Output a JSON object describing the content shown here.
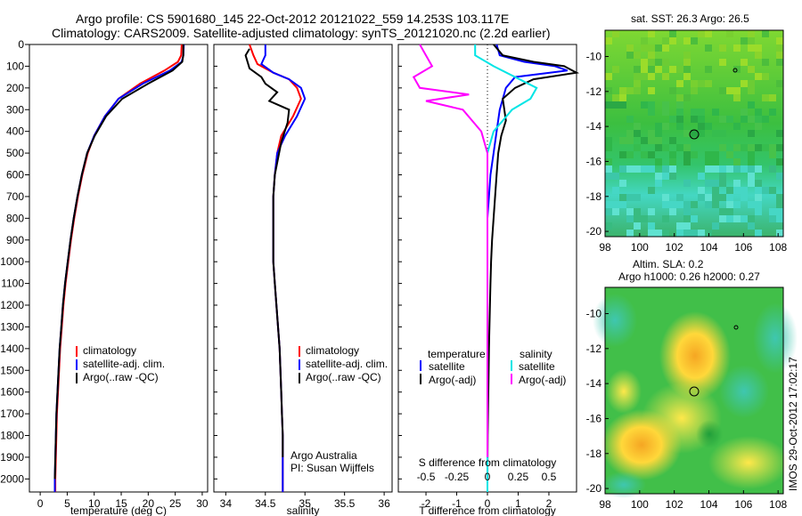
{
  "header": {
    "line1": "Argo profile: CS 5901680_145 22-Oct-2012 20121022_559 14.253S 103.117E",
    "line2": "Climatology: CARS2009. Satellite-adjusted climatology: synTS_20121020.nc (2.2d earlier)"
  },
  "colors": {
    "climatology": "#ff0000",
    "satellite": "#0000ff",
    "argo": "#000000",
    "cyan": "#00e5e5",
    "magenta": "#ff00ff"
  },
  "depth_axis": {
    "ticks": [
      0,
      100,
      200,
      300,
      400,
      500,
      600,
      700,
      800,
      900,
      1000,
      1100,
      1200,
      1300,
      1400,
      1500,
      1600,
      1700,
      1800,
      1900,
      2000
    ],
    "range": [
      0,
      2060
    ]
  },
  "temp_panel": {
    "xlabel": "temperature (deg C)",
    "xticks": [
      0,
      5,
      10,
      15,
      20,
      25,
      30
    ],
    "xlim": [
      -2,
      31
    ],
    "legend": [
      "climatology",
      "satellite-adj. clim.",
      "Argo(..raw -QC)"
    ]
  },
  "sal_panel": {
    "xlabel": "salinity",
    "xticks": [
      "34",
      "34.5",
      "35",
      "35.5",
      "36"
    ],
    "xlim": [
      33.85,
      36.1
    ],
    "legend": [
      "climatology",
      "satellite-adj. clim.",
      "Argo(..raw -QC)"
    ],
    "credit1": "Argo Australia",
    "credit2": "PI: Susan Wijffels"
  },
  "diff_panel": {
    "xlabel": "T difference from climatology",
    "top_label": "S difference from climatology",
    "xticks": [
      "-2",
      "-1",
      "0",
      "1",
      "2"
    ],
    "top_ticks": [
      "-0.5",
      "-0.25",
      "0",
      "0.25",
      "0.5"
    ],
    "xlim": [
      -2.9,
      2.9
    ],
    "legend_temp_title": "temperature",
    "legend_sal_title": "salinity",
    "legend_sat": "satellite",
    "legend_argo": "Argo(-adj)"
  },
  "maps": {
    "sst_title": "sat. SST: 26.3 Argo: 26.5",
    "sla_title1": "Altim. SLA: 0.2",
    "sla_title2": "Argo h1000: 0.26 h2000: 0.27",
    "xticks": [
      "98",
      "100",
      "102",
      "104",
      "106",
      "108"
    ],
    "sst_yticks": [
      "-10",
      "-12",
      "-14",
      "-16",
      "-18",
      "-20"
    ],
    "sla_yticks": [
      "-10",
      "-12",
      "-14",
      "-16",
      "-18",
      "-20"
    ],
    "watermark": "IMOS 29-Oct-2012 17:02:17"
  },
  "chart_data": [
    {
      "type": "line",
      "title": "",
      "xlabel": "temperature (deg C)",
      "ylabel": "",
      "xlim": [
        -2,
        31
      ],
      "ylim": [
        2060,
        0
      ],
      "series": [
        {
          "name": "climatology",
          "x": [
            26.2,
            26.1,
            25.5,
            23,
            18.5,
            14.5,
            12,
            10,
            8.8,
            7.8,
            7,
            6.3,
            5.7,
            5.2,
            4.7,
            4.3,
            4,
            3.7,
            3.5,
            3.3,
            3.1,
            3,
            2.9,
            2.8,
            2.8
          ],
          "y": [
            0,
            50,
            80,
            120,
            180,
            250,
            330,
            420,
            500,
            600,
            700,
            800,
            900,
            1000,
            1100,
            1200,
            1300,
            1400,
            1500,
            1600,
            1700,
            1800,
            1900,
            2000,
            2060
          ]
        },
        {
          "name": "satellite-adj. clim.",
          "x": [
            26.6,
            26.5,
            26.2,
            24,
            19,
            14.5,
            12,
            10,
            8.7,
            7.7,
            6.9,
            6.2,
            5.6,
            5.1,
            4.6,
            4.2,
            3.9,
            3.6,
            3.4,
            3.2,
            3,
            2.9,
            2.8,
            2.7,
            2.7
          ],
          "y": [
            0,
            50,
            80,
            120,
            180,
            250,
            330,
            420,
            500,
            600,
            700,
            800,
            900,
            1000,
            1100,
            1200,
            1300,
            1400,
            1500,
            1600,
            1700,
            1800,
            1900,
            2000,
            2060
          ]
        },
        {
          "name": "Argo(..raw -QC)",
          "x": [
            26.5,
            26.5,
            26.3,
            24.5,
            20,
            15.2,
            12.2,
            10.1,
            8.7,
            7.7,
            6.9,
            6.2,
            5.6,
            5.1,
            4.6,
            4.2,
            3.9,
            3.6,
            3.4,
            3.2,
            3,
            2.9,
            2.8,
            2.7
          ],
          "y": [
            0,
            50,
            80,
            120,
            180,
            250,
            330,
            420,
            500,
            600,
            700,
            800,
            900,
            1000,
            1100,
            1200,
            1300,
            1400,
            1500,
            1600,
            1700,
            1800,
            1900,
            2000
          ]
        }
      ]
    },
    {
      "type": "line",
      "title": "",
      "xlabel": "salinity",
      "ylabel": "",
      "xlim": [
        33.85,
        36.1
      ],
      "ylim": [
        2060,
        0
      ],
      "series": [
        {
          "name": "climatology",
          "x": [
            34.3,
            34.35,
            34.4,
            34.6,
            34.8,
            34.9,
            34.95,
            34.85,
            34.7,
            34.65,
            34.62,
            34.6,
            34.6,
            34.6,
            34.6,
            34.62,
            34.64,
            34.66,
            34.68,
            34.69,
            34.7,
            34.71,
            34.72,
            34.72,
            34.72
          ],
          "y": [
            0,
            50,
            90,
            130,
            160,
            200,
            250,
            330,
            420,
            500,
            600,
            700,
            800,
            900,
            1000,
            1100,
            1200,
            1300,
            1400,
            1500,
            1600,
            1700,
            1800,
            1900,
            2060
          ]
        },
        {
          "name": "satellite-adj. clim.",
          "x": [
            34.5,
            34.5,
            34.45,
            34.6,
            34.8,
            34.95,
            35,
            34.9,
            34.75,
            34.65,
            34.62,
            34.6,
            34.6,
            34.6,
            34.6,
            34.62,
            34.64,
            34.66,
            34.68,
            34.69,
            34.7,
            34.71,
            34.72,
            34.72,
            34.72
          ],
          "y": [
            0,
            50,
            90,
            130,
            160,
            200,
            250,
            330,
            420,
            500,
            600,
            700,
            800,
            900,
            1000,
            1100,
            1200,
            1300,
            1400,
            1500,
            1600,
            1700,
            1800,
            1900,
            2060
          ]
        },
        {
          "name": "Argo(..raw -QC)",
          "x": [
            34.3,
            34.25,
            34.3,
            34.45,
            34.5,
            34.65,
            34.55,
            34.8,
            34.78,
            34.7,
            34.62,
            34.6,
            34.6,
            34.6,
            34.6,
            34.62,
            34.64,
            34.66,
            34.68,
            34.69,
            34.7,
            34.71,
            34.72,
            34.72
          ],
          "y": [
            20,
            50,
            110,
            150,
            180,
            220,
            260,
            300,
            360,
            450,
            600,
            700,
            800,
            900,
            1000,
            1100,
            1200,
            1300,
            1400,
            1500,
            1600,
            1700,
            1800,
            1900
          ]
        }
      ]
    },
    {
      "type": "line",
      "title": "",
      "xlabel": "T difference from climatology",
      "ylabel": "",
      "xlim": [
        -2.9,
        2.9
      ],
      "ylim": [
        2060,
        0
      ],
      "series": [
        {
          "name": "satellite",
          "x": [
            0.3,
            0.4,
            1.2,
            2.2,
            2.6,
            0.9,
            0.6,
            0.4,
            0.3,
            0.2,
            0.1,
            0.05,
            0,
            0,
            0,
            0,
            0,
            0,
            0,
            0,
            0,
            0,
            0
          ],
          "y": [
            0,
            50,
            80,
            100,
            120,
            150,
            200,
            300,
            400,
            500,
            600,
            700,
            800,
            900,
            1000,
            1100,
            1200,
            1400,
            1600,
            1800,
            1900,
            2000,
            2060
          ]
        },
        {
          "name": "Argo(-adj)",
          "x": [
            0.2,
            0.5,
            1.5,
            2.5,
            2.9,
            1.5,
            0.9,
            0.5,
            0.6,
            0.45,
            0.35,
            0.3,
            0.25,
            0.2,
            0.15,
            0.12,
            0.1,
            0.08,
            0.05,
            0.03,
            0.01,
            0
          ],
          "y": [
            0,
            50,
            80,
            100,
            130,
            160,
            200,
            250,
            350,
            420,
            500,
            600,
            700,
            800,
            900,
            1000,
            1100,
            1200,
            1400,
            1600,
            1800,
            2000
          ]
        },
        {
          "name": "salinity satellite",
          "x": [
            -0.1,
            -0.1,
            0.05,
            0.4,
            0.35,
            0.2,
            0.05,
            0,
            0,
            0,
            0,
            0,
            0,
            0,
            0,
            0
          ],
          "y": [
            0,
            50,
            100,
            200,
            250,
            300,
            400,
            500,
            600,
            700,
            800,
            1000,
            1200,
            1500,
            1800,
            2060
          ]
        },
        {
          "name": "salinity Argo(-adj)",
          "x": [
            -0.55,
            -0.5,
            -0.45,
            -0.6,
            -0.55,
            -0.15,
            -0.5,
            -0.2,
            -0.05,
            0,
            0,
            0,
            0,
            0,
            0
          ],
          "y": [
            0,
            50,
            100,
            150,
            200,
            230,
            260,
            300,
            400,
            500,
            800,
            1000,
            1200,
            1500,
            1900
          ]
        }
      ]
    },
    {
      "type": "heatmap",
      "title": "sat. SST: 26.3 Argo: 26.5",
      "xlabel": "",
      "ylabel": "",
      "xlim": [
        98,
        108.3
      ],
      "ylim": [
        -20.3,
        -8.5
      ]
    },
    {
      "type": "heatmap",
      "title": "Altim. SLA: 0.2 / Argo h1000: 0.26 h2000: 0.27",
      "xlabel": "",
      "ylabel": "",
      "xlim": [
        98,
        108.3
      ],
      "ylim": [
        -20.3,
        -8.5
      ]
    }
  ]
}
